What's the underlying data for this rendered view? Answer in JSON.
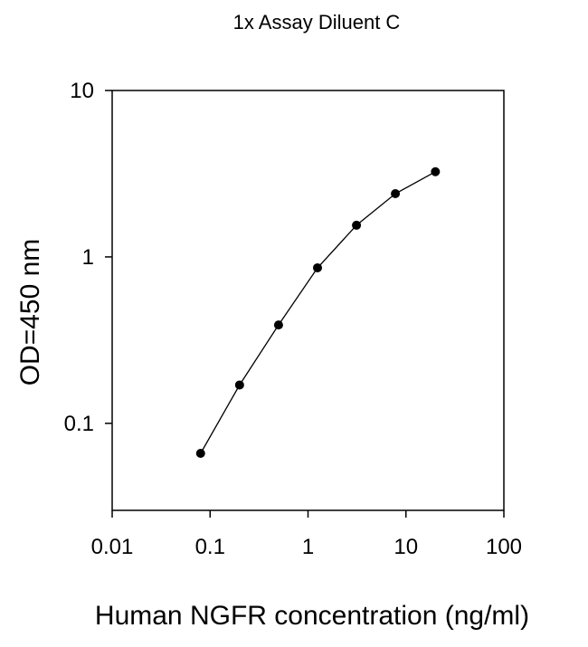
{
  "chart_data": {
    "type": "line",
    "title": "1x Assay Diluent C",
    "xlabel": "Human NGFR concentration (ng/ml)",
    "ylabel": "OD=450 nm",
    "xscale": "log",
    "yscale": "log",
    "xlim": [
      0.01,
      100
    ],
    "ylim": [
      0.03,
      10
    ],
    "xticks": [
      "0.01",
      "0.1",
      "1",
      "10",
      "100"
    ],
    "yticks": [
      "0.1",
      "1",
      "10"
    ],
    "grid": false,
    "legend": "none",
    "series": [
      {
        "x": [
          0.08,
          0.2,
          0.5,
          1.25,
          3.125,
          7.8,
          20
        ],
        "y": [
          0.066,
          0.17,
          0.39,
          0.86,
          1.55,
          2.4,
          3.25
        ],
        "marker": "circle",
        "color": "#000000"
      }
    ]
  }
}
